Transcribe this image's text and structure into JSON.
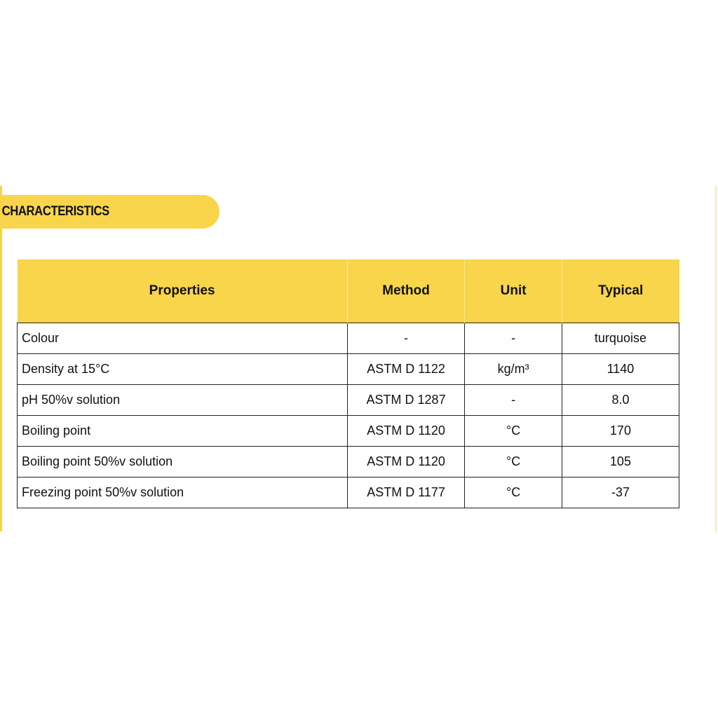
{
  "section_title": "CHARACTERISTICS",
  "accent_color": "#f8d54a",
  "table": {
    "headers": [
      "Properties",
      "Method",
      "Unit",
      "Typical"
    ],
    "rows": [
      [
        "Colour",
        "-",
        "-",
        "turquoise"
      ],
      [
        "Density at 15°C",
        "ASTM D 1122",
        "kg/m³",
        "1140"
      ],
      [
        "pH 50%v solution",
        "ASTM D 1287",
        "-",
        "8.0"
      ],
      [
        "Boiling point",
        "ASTM D 1120",
        "°C",
        "170"
      ],
      [
        "Boiling point 50%v solution",
        "ASTM D 1120",
        "°C",
        "105"
      ],
      [
        "Freezing point 50%v solution",
        "ASTM D 1177",
        "°C",
        "-37"
      ]
    ]
  }
}
